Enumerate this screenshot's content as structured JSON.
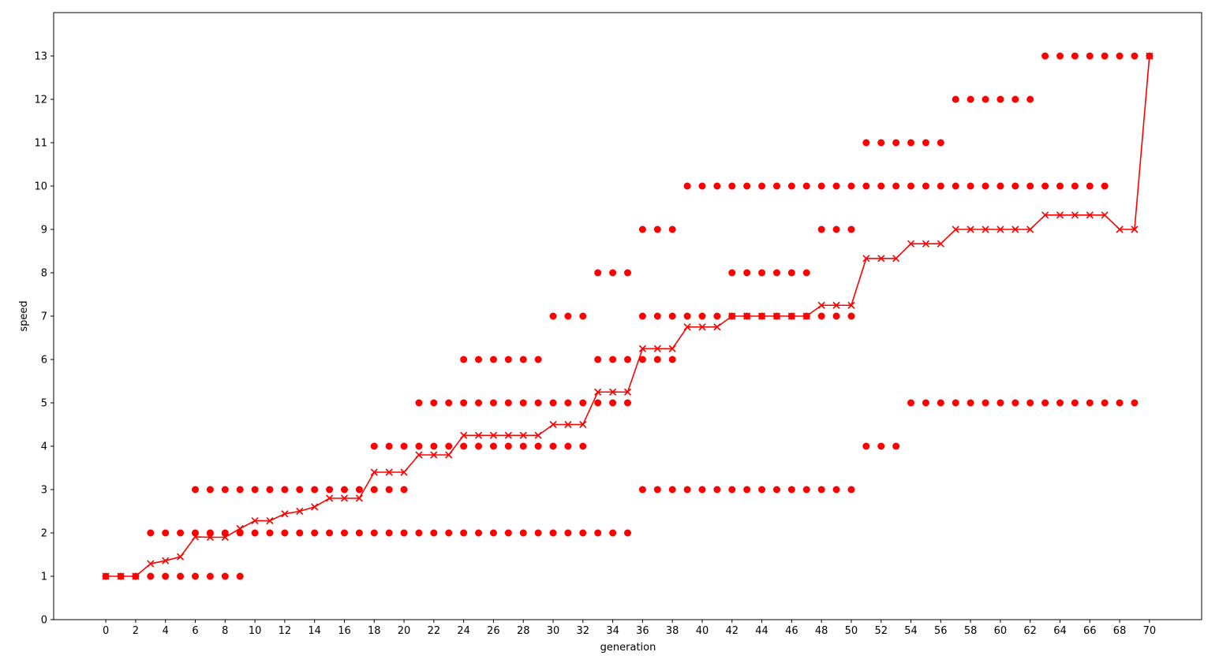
{
  "chart_data": {
    "type": "scatter",
    "xlabel": "generation",
    "ylabel": "speed",
    "xlim": [
      -3.5,
      73.5
    ],
    "ylim": [
      0,
      14
    ],
    "xticks": [
      0,
      2,
      4,
      6,
      8,
      10,
      12,
      14,
      16,
      18,
      20,
      22,
      24,
      26,
      28,
      30,
      32,
      34,
      36,
      38,
      40,
      42,
      44,
      46,
      48,
      50,
      52,
      54,
      56,
      58,
      60,
      62,
      64,
      66,
      68,
      70
    ],
    "yticks": [
      0,
      1,
      2,
      3,
      4,
      5,
      6,
      7,
      8,
      9,
      10,
      11,
      12,
      13
    ],
    "color": "#ff0000",
    "grid": false,
    "legend": "none",
    "population": [
      [
        1
      ],
      [
        1
      ],
      [
        1
      ],
      [
        1,
        2
      ],
      [
        1,
        2
      ],
      [
        1,
        2
      ],
      [
        1,
        2,
        3
      ],
      [
        1,
        2,
        3
      ],
      [
        1,
        2,
        3
      ],
      [
        1,
        2,
        3
      ],
      [
        2,
        3
      ],
      [
        2,
        3
      ],
      [
        2,
        3
      ],
      [
        2,
        3
      ],
      [
        2,
        3
      ],
      [
        2,
        3
      ],
      [
        2,
        3
      ],
      [
        2,
        3
      ],
      [
        2,
        3,
        4
      ],
      [
        2,
        3,
        4
      ],
      [
        2,
        3,
        4
      ],
      [
        2,
        4,
        5
      ],
      [
        2,
        4,
        5
      ],
      [
        2,
        4,
        5
      ],
      [
        2,
        4,
        5,
        6
      ],
      [
        2,
        4,
        5,
        6
      ],
      [
        2,
        4,
        5,
        6
      ],
      [
        2,
        4,
        5,
        6
      ],
      [
        2,
        4,
        5,
        6
      ],
      [
        2,
        4,
        5,
        6
      ],
      [
        2,
        4,
        5,
        7
      ],
      [
        2,
        4,
        5,
        7
      ],
      [
        2,
        4,
        5,
        7
      ],
      [
        2,
        5,
        6,
        8
      ],
      [
        2,
        5,
        6,
        8
      ],
      [
        2,
        5,
        6,
        8
      ],
      [
        3,
        6,
        7,
        9
      ],
      [
        3,
        6,
        7,
        9
      ],
      [
        3,
        6,
        7,
        9
      ],
      [
        3,
        7,
        10
      ],
      [
        3,
        7,
        10
      ],
      [
        3,
        7,
        10
      ],
      [
        3,
        7,
        8,
        10
      ],
      [
        3,
        7,
        8,
        10
      ],
      [
        3,
        7,
        8,
        10
      ],
      [
        3,
        7,
        8,
        10
      ],
      [
        3,
        7,
        8,
        10
      ],
      [
        3,
        7,
        8,
        10
      ],
      [
        3,
        7,
        9,
        10
      ],
      [
        3,
        7,
        9,
        10
      ],
      [
        3,
        7,
        9,
        10
      ],
      [
        4,
        10,
        11
      ],
      [
        4,
        10,
        11
      ],
      [
        4,
        10,
        11
      ],
      [
        5,
        10,
        11
      ],
      [
        5,
        10,
        11
      ],
      [
        5,
        10,
        11
      ],
      [
        5,
        10,
        12
      ],
      [
        5,
        10,
        12
      ],
      [
        5,
        10,
        12
      ],
      [
        5,
        10,
        12
      ],
      [
        5,
        10,
        12
      ],
      [
        5,
        10,
        12
      ],
      [
        5,
        10,
        13
      ],
      [
        5,
        10,
        13
      ],
      [
        5,
        10,
        13
      ],
      [
        5,
        10,
        13
      ],
      [
        5,
        10,
        13
      ],
      [
        5,
        13
      ],
      [
        5,
        13
      ],
      [
        13
      ]
    ],
    "mean": [
      1,
      1,
      1,
      1.29,
      1.36,
      1.45,
      1.91,
      1.9,
      1.9,
      2.1,
      2.28,
      2.28,
      2.44,
      2.5,
      2.6,
      2.8,
      2.8,
      2.8,
      3.4,
      3.4,
      3.4,
      3.8,
      3.8,
      3.8,
      4.25,
      4.25,
      4.25,
      4.25,
      4.25,
      4.25,
      4.5,
      4.5,
      4.5,
      5.25,
      5.25,
      5.25,
      6.25,
      6.25,
      6.25,
      6.75,
      6.75,
      6.75,
      7,
      7,
      7,
      7,
      7,
      7,
      7.25,
      7.25,
      7.25,
      8.33,
      8.33,
      8.33,
      8.67,
      8.67,
      8.67,
      9,
      9,
      9,
      9,
      9,
      9,
      9.33,
      9.33,
      9.33,
      9.33,
      9.33,
      9,
      9,
      13
    ]
  }
}
